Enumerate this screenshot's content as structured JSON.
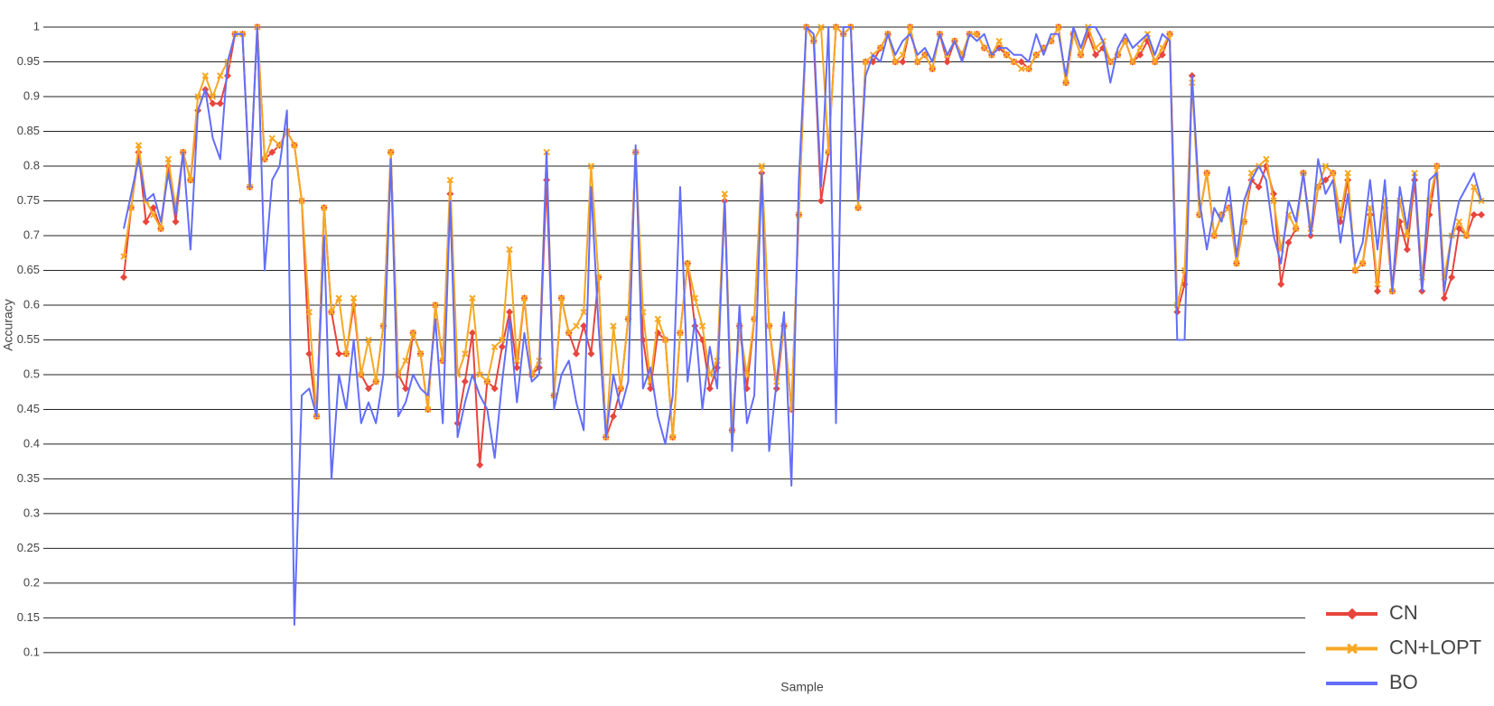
{
  "chart_data": {
    "type": "line",
    "x_label": "Sample",
    "y_label": "Accuracy",
    "ylim": [
      0.07,
      1.01
    ],
    "yticks": [
      1,
      0.95,
      0.9,
      0.85,
      0.8,
      0.75,
      0.7,
      0.65,
      0.6,
      0.55,
      0.5,
      0.45,
      0.4,
      0.35,
      0.3,
      0.25,
      0.2,
      0.15,
      0.1
    ],
    "grid": true,
    "legend": "bottom-right",
    "series": [
      {
        "name": "CN",
        "color": "#e8453c",
        "marker": "diamond",
        "values": [
          0.64,
          0.74,
          0.82,
          0.72,
          0.74,
          0.71,
          0.8,
          0.72,
          0.82,
          0.78,
          0.88,
          0.91,
          0.89,
          0.89,
          0.93,
          0.99,
          0.99,
          0.77,
          1.0,
          0.81,
          0.82,
          0.83,
          0.85,
          0.83,
          0.75,
          0.53,
          0.44,
          0.74,
          0.59,
          0.53,
          0.53,
          0.6,
          0.5,
          0.48,
          0.49,
          0.57,
          0.82,
          0.5,
          0.48,
          0.56,
          0.53,
          0.45,
          0.6,
          0.52,
          0.76,
          0.43,
          0.49,
          0.56,
          0.37,
          0.49,
          0.48,
          0.54,
          0.59,
          0.51,
          0.61,
          0.5,
          0.51,
          0.78,
          0.47,
          0.61,
          0.56,
          0.53,
          0.57,
          0.53,
          0.64,
          0.41,
          0.44,
          0.48,
          0.58,
          0.82,
          0.55,
          0.48,
          0.56,
          0.55,
          0.41,
          0.56,
          0.66,
          0.57,
          0.55,
          0.48,
          0.51,
          0.75,
          0.42,
          0.57,
          0.48,
          0.58,
          0.79,
          0.57,
          0.48,
          0.57,
          0.45,
          0.73,
          1.0,
          0.98,
          0.75,
          0.82,
          1.0,
          0.99,
          1.0,
          0.74,
          0.95,
          0.95,
          0.97,
          0.99,
          0.95,
          0.95,
          1.0,
          0.95,
          0.96,
          0.94,
          0.99,
          0.95,
          0.98,
          0.96,
          0.99,
          0.99,
          0.97,
          0.96,
          0.97,
          0.96,
          0.95,
          0.95,
          0.94,
          0.96,
          0.97,
          0.98,
          1.0,
          0.92,
          0.99,
          0.96,
          0.99,
          0.96,
          0.97,
          0.95,
          0.96,
          0.98,
          0.95,
          0.96,
          0.98,
          0.95,
          0.96,
          0.99,
          0.59,
          0.63,
          0.93,
          0.73,
          0.79,
          0.7,
          0.73,
          0.74,
          0.66,
          0.72,
          0.78,
          0.77,
          0.8,
          0.76,
          0.63,
          0.69,
          0.71,
          0.79,
          0.7,
          0.77,
          0.78,
          0.79,
          0.72,
          0.78,
          0.65,
          0.66,
          0.73,
          0.62,
          0.74,
          0.62,
          0.72,
          0.68,
          0.78,
          0.62,
          0.73,
          0.8,
          0.61,
          0.64,
          0.71,
          0.7,
          0.73,
          0.73
        ]
      },
      {
        "name": "CN+LOPT",
        "color": "#f7a823",
        "marker": "x",
        "values": [
          0.67,
          0.74,
          0.83,
          0.75,
          0.73,
          0.71,
          0.81,
          0.74,
          0.82,
          0.78,
          0.9,
          0.93,
          0.9,
          0.93,
          0.95,
          0.99,
          0.99,
          0.77,
          1.0,
          0.81,
          0.84,
          0.83,
          0.85,
          0.83,
          0.75,
          0.59,
          0.44,
          0.74,
          0.59,
          0.61,
          0.53,
          0.61,
          0.5,
          0.55,
          0.49,
          0.57,
          0.82,
          0.5,
          0.52,
          0.56,
          0.53,
          0.45,
          0.6,
          0.52,
          0.78,
          0.5,
          0.53,
          0.61,
          0.5,
          0.49,
          0.54,
          0.55,
          0.68,
          0.52,
          0.61,
          0.5,
          0.52,
          0.82,
          0.47,
          0.61,
          0.56,
          0.57,
          0.59,
          0.8,
          0.64,
          0.41,
          0.57,
          0.48,
          0.58,
          0.82,
          0.59,
          0.49,
          0.58,
          0.55,
          0.41,
          0.56,
          0.66,
          0.61,
          0.57,
          0.5,
          0.52,
          0.76,
          0.42,
          0.57,
          0.5,
          0.58,
          0.8,
          0.57,
          0.49,
          0.57,
          0.45,
          0.73,
          1.0,
          0.98,
          1.0,
          0.82,
          1.0,
          0.99,
          1.0,
          0.74,
          0.95,
          0.96,
          0.97,
          0.99,
          0.95,
          0.96,
          1.0,
          0.95,
          0.96,
          0.94,
          0.99,
          0.96,
          0.98,
          0.96,
          0.99,
          0.99,
          0.97,
          0.96,
          0.98,
          0.96,
          0.95,
          0.94,
          0.94,
          0.96,
          0.97,
          0.98,
          1.0,
          0.92,
          0.99,
          0.96,
          1.0,
          0.97,
          0.98,
          0.95,
          0.96,
          0.98,
          0.95,
          0.97,
          0.99,
          0.95,
          0.97,
          0.99,
          0.6,
          0.65,
          0.92,
          0.73,
          0.79,
          0.7,
          0.73,
          0.74,
          0.66,
          0.72,
          0.79,
          0.8,
          0.81,
          0.75,
          0.68,
          0.73,
          0.71,
          0.79,
          0.71,
          0.77,
          0.8,
          0.79,
          0.73,
          0.79,
          0.65,
          0.66,
          0.74,
          0.63,
          0.75,
          0.62,
          0.75,
          0.7,
          0.79,
          0.64,
          0.75,
          0.8,
          0.64,
          0.7,
          0.72,
          0.7,
          0.77,
          0.75
        ]
      },
      {
        "name": "BO",
        "color": "#636efa",
        "values": [
          0.71,
          0.76,
          0.81,
          0.75,
          0.76,
          0.72,
          0.79,
          0.73,
          0.82,
          0.68,
          0.88,
          0.91,
          0.84,
          0.81,
          0.95,
          0.99,
          0.99,
          0.77,
          1.0,
          0.65,
          0.78,
          0.8,
          0.88,
          0.14,
          0.47,
          0.48,
          0.44,
          0.7,
          0.35,
          0.5,
          0.45,
          0.55,
          0.43,
          0.46,
          0.43,
          0.5,
          0.81,
          0.44,
          0.46,
          0.5,
          0.48,
          0.47,
          0.58,
          0.43,
          0.75,
          0.41,
          0.46,
          0.5,
          0.47,
          0.45,
          0.38,
          0.49,
          0.58,
          0.46,
          0.56,
          0.49,
          0.5,
          0.82,
          0.45,
          0.5,
          0.52,
          0.46,
          0.42,
          0.77,
          0.57,
          0.41,
          0.5,
          0.45,
          0.49,
          0.83,
          0.48,
          0.51,
          0.44,
          0.4,
          0.47,
          0.77,
          0.49,
          0.58,
          0.45,
          0.54,
          0.48,
          0.75,
          0.39,
          0.6,
          0.43,
          0.47,
          0.79,
          0.39,
          0.49,
          0.59,
          0.34,
          0.78,
          1.0,
          0.99,
          0.77,
          1.0,
          0.43,
          1.0,
          1.0,
          0.75,
          0.93,
          0.96,
          0.95,
          0.99,
          0.96,
          0.98,
          0.99,
          0.96,
          0.97,
          0.95,
          0.99,
          0.96,
          0.98,
          0.95,
          0.99,
          0.98,
          0.99,
          0.96,
          0.97,
          0.97,
          0.96,
          0.96,
          0.95,
          0.99,
          0.96,
          0.99,
          0.99,
          0.93,
          1.0,
          0.97,
          1.0,
          1.0,
          0.98,
          0.92,
          0.97,
          0.99,
          0.97,
          0.98,
          0.99,
          0.96,
          0.99,
          0.98,
          0.55,
          0.55,
          0.93,
          0.75,
          0.68,
          0.74,
          0.72,
          0.77,
          0.67,
          0.75,
          0.78,
          0.8,
          0.78,
          0.7,
          0.66,
          0.75,
          0.72,
          0.79,
          0.7,
          0.81,
          0.76,
          0.78,
          0.69,
          0.76,
          0.66,
          0.69,
          0.78,
          0.68,
          0.78,
          0.62,
          0.77,
          0.71,
          0.79,
          0.62,
          0.78,
          0.79,
          0.62,
          0.7,
          0.75,
          0.77,
          0.79,
          0.75
        ]
      }
    ]
  }
}
